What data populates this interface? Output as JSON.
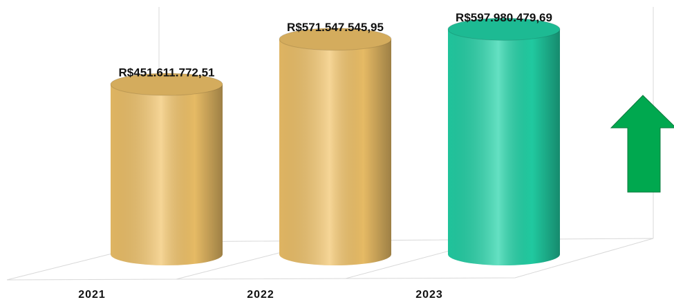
{
  "chart_data": {
    "type": "bar",
    "categories": [
      "2021",
      "2022",
      "2023"
    ],
    "values": [
      451611772.51,
      571547545.95,
      597980479.69
    ],
    "value_labels": [
      "R$451.611.772,51",
      "R$571.547.545,95",
      "R$597.980.479,69"
    ],
    "colors": [
      "#f2c46a",
      "#f2c46a",
      "#22d4a8"
    ],
    "ylim": [
      0,
      650000000
    ]
  }
}
